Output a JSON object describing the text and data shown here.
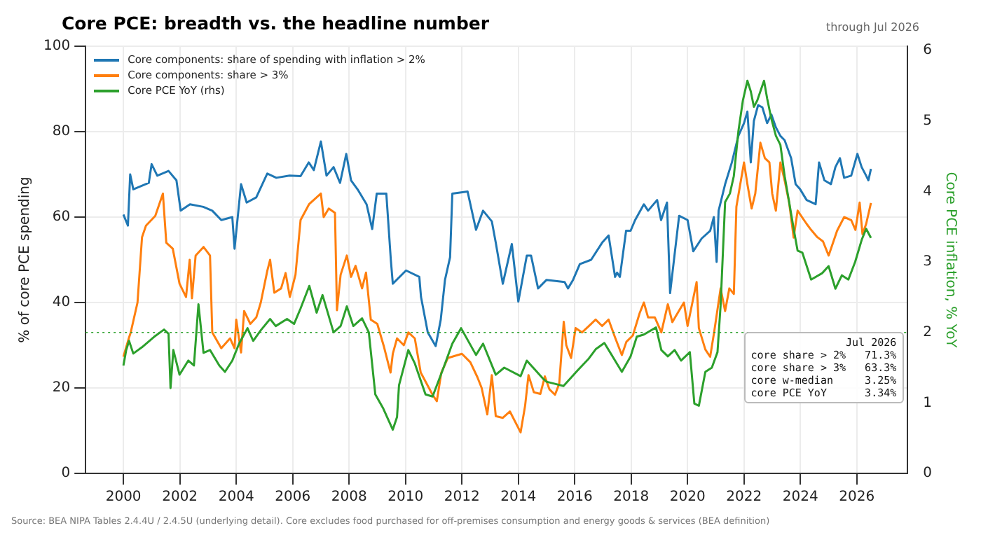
{
  "chart_data": {
    "type": "line",
    "title": "Core PCE: breadth vs. the headline number",
    "subtitle": "through Jul 2026",
    "ylabel": "% of core PCE spending",
    "y2label": "Core PCE inflation, % YoY",
    "xlim": [
      1998.66,
      2027.8
    ],
    "xticks": [
      2000,
      2002,
      2004,
      2006,
      2008,
      2010,
      2012,
      2014,
      2016,
      2018,
      2020,
      2022,
      2024,
      2026
    ],
    "ylim": [
      0,
      100
    ],
    "yticks": [
      0,
      20,
      40,
      60,
      80,
      100
    ],
    "y2lim": [
      0,
      6.06
    ],
    "y2ticks": [
      0,
      1,
      2,
      3,
      4,
      5,
      6
    ],
    "grid": true,
    "legend": "top left",
    "ref_lines": [
      {
        "axis": "y2",
        "value": 2,
        "color": "#2ca02c",
        "line_style": "dotted"
      }
    ],
    "annotations": [
      "Source: BEA NIPA Tables 2.4.4U / 2.4.5U (underlying detail). Core excludes food purchased for off-premises consumption and energy goods & services (BEA definition)",
      "Jul 2026",
      "core share > 2%   71.3%",
      "core share > 3%   63.3%",
      "core w-median     3.25%",
      "core PCE YoY      3.34%"
    ],
    "series": [
      {
        "name": "Core components: share of spending with inflation > 2%",
        "color": "#1f77b4",
        "x": [
          2000.0,
          2000.16,
          2000.24,
          2000.35,
          2000.9,
          2001.0,
          2001.2,
          2001.6,
          2001.88,
          2002.03,
          2002.36,
          2002.83,
          2003.15,
          2003.47,
          2003.86,
          2003.94,
          2004.17,
          2004.37,
          2004.71,
          2005.1,
          2005.42,
          2005.89,
          2006.28,
          2006.57,
          2006.75,
          2007.0,
          2007.2,
          2007.45,
          2007.68,
          2007.9,
          2008.07,
          2008.3,
          2008.62,
          2008.82,
          2008.98,
          2009.32,
          2009.48,
          2009.55,
          2010.02,
          2010.49,
          2010.55,
          2010.79,
          2011.07,
          2011.25,
          2011.4,
          2011.58,
          2011.66,
          2012.2,
          2012.5,
          2012.75,
          2013.06,
          2013.2,
          2013.45,
          2013.77,
          2014.0,
          2014.3,
          2014.45,
          2014.7,
          2015.0,
          2015.64,
          2015.76,
          2015.94,
          2016.18,
          2016.58,
          2016.97,
          2017.2,
          2017.43,
          2017.5,
          2017.6,
          2017.82,
          2017.98,
          2018.14,
          2018.45,
          2018.6,
          2018.92,
          2019.06,
          2019.27,
          2019.38,
          2019.5,
          2019.7,
          2020.0,
          2020.2,
          2020.5,
          2020.8,
          2020.93,
          2021.03,
          2021.1,
          2021.33,
          2021.57,
          2021.8,
          2022.0,
          2022.12,
          2022.24,
          2022.35,
          2022.5,
          2022.65,
          2022.82,
          2022.97,
          2023.13,
          2023.29,
          2023.44,
          2023.67,
          2023.83,
          2023.99,
          2024.22,
          2024.54,
          2024.66,
          2024.85,
          2025.08,
          2025.24,
          2025.4,
          2025.55,
          2025.8,
          2026.02,
          2026.17,
          2026.33,
          2026.41,
          2026.5
        ],
        "values": [
          60.6,
          58,
          70,
          66.5,
          68,
          72.4,
          69.7,
          70.8,
          68.6,
          61.5,
          63,
          62.4,
          61.5,
          59.3,
          60,
          52.6,
          67.7,
          63.4,
          64.6,
          70.2,
          69.2,
          69.7,
          69.6,
          72.8,
          71,
          77.7,
          69.7,
          71.7,
          68,
          74.8,
          68.6,
          66.5,
          63,
          57.2,
          65.5,
          65.5,
          50,
          44.4,
          47.5,
          46,
          41.3,
          33,
          29.8,
          36,
          45.3,
          50.6,
          65.5,
          66,
          57,
          61.5,
          59,
          54,
          44.4,
          53.7,
          40.2,
          51,
          51,
          43.3,
          45.3,
          44.8,
          43.3,
          45.3,
          49,
          50,
          54,
          55.7,
          46,
          47,
          46,
          56.8,
          56.8,
          59.3,
          63,
          61.5,
          64,
          59.3,
          63.4,
          42.2,
          49,
          60.3,
          59.3,
          52,
          55,
          56.8,
          60,
          49.5,
          61.5,
          67.7,
          72.8,
          79,
          82,
          84.7,
          72.8,
          82.5,
          86.2,
          85.7,
          82,
          84,
          81,
          79,
          78,
          73.8,
          67.7,
          66.5,
          64,
          63,
          72.8,
          68.6,
          67.7,
          71.7,
          73.8,
          69.2,
          69.7,
          74.8,
          71.7,
          69.7,
          68.6,
          71.3
        ]
      },
      {
        "name": "Core components: share > 3%",
        "color": "#ff7f0e",
        "x": [
          2000.0,
          2000.2,
          2000.26,
          2000.5,
          2000.66,
          2000.8,
          2001.13,
          2001.4,
          2001.52,
          2001.75,
          2001.99,
          2002.22,
          2002.35,
          2002.43,
          2002.56,
          2002.84,
          2003.07,
          2003.15,
          2003.47,
          2003.78,
          2003.94,
          2004.0,
          2004.17,
          2004.28,
          2004.5,
          2004.71,
          2004.87,
          2005.1,
          2005.2,
          2005.35,
          2005.59,
          2005.75,
          2005.9,
          2006.1,
          2006.28,
          2006.58,
          2007.0,
          2007.1,
          2007.28,
          2007.5,
          2007.57,
          2007.7,
          2007.92,
          2008.07,
          2008.23,
          2008.46,
          2008.6,
          2008.77,
          2009.0,
          2009.23,
          2009.47,
          2009.55,
          2009.7,
          2009.94,
          2010.1,
          2010.33,
          2010.54,
          2010.96,
          2011.11,
          2011.27,
          2011.5,
          2012.0,
          2012.3,
          2012.55,
          2012.7,
          2012.9,
          2013.06,
          2013.2,
          2013.45,
          2013.7,
          2014.08,
          2014.24,
          2014.36,
          2014.55,
          2014.78,
          2014.94,
          2015.1,
          2015.3,
          2015.45,
          2015.61,
          2015.7,
          2015.87,
          2016.03,
          2016.26,
          2016.5,
          2016.74,
          2016.97,
          2017.2,
          2017.43,
          2017.67,
          2017.83,
          2018.06,
          2018.3,
          2018.45,
          2018.6,
          2018.84,
          2019.07,
          2019.3,
          2019.46,
          2019.6,
          2019.87,
          2020.0,
          2020.32,
          2020.4,
          2020.63,
          2020.8,
          2020.94,
          2021.17,
          2021.33,
          2021.48,
          2021.64,
          2021.73,
          2022.0,
          2022.12,
          2022.27,
          2022.4,
          2022.58,
          2022.74,
          2022.9,
          2023.0,
          2023.13,
          2023.29,
          2023.44,
          2023.6,
          2023.76,
          2023.9,
          2024.22,
          2024.38,
          2024.6,
          2024.8,
          2025.0,
          2025.3,
          2025.55,
          2025.8,
          2025.95,
          2026.1,
          2026.2,
          2026.33,
          2026.5
        ],
        "values": [
          27.3,
          31.8,
          33,
          40,
          55.3,
          58,
          60.3,
          65.5,
          54,
          52.6,
          44.4,
          41.3,
          50,
          41,
          51,
          53,
          51,
          33,
          29.3,
          31.6,
          29.3,
          36,
          28.3,
          38,
          35,
          36.5,
          40,
          47.4,
          50,
          42.3,
          43.3,
          46.9,
          41.3,
          46.5,
          59.3,
          63,
          65.5,
          60,
          62,
          61,
          38.2,
          46.5,
          51,
          46,
          48.6,
          43.3,
          47,
          36,
          35,
          29.8,
          23.6,
          28,
          31.6,
          30,
          33,
          31.6,
          23.6,
          18.4,
          16.9,
          23.6,
          27,
          28,
          26,
          22.5,
          20,
          13.8,
          23,
          13.4,
          13,
          14.5,
          9.6,
          15.8,
          23,
          19,
          18.6,
          22.7,
          19.7,
          18.4,
          21,
          35.5,
          30,
          27,
          34,
          33,
          34.5,
          36,
          34.5,
          36,
          31.8,
          27.7,
          30.8,
          32.3,
          37.5,
          40,
          36.5,
          36.5,
          33,
          39.6,
          35.4,
          37,
          40,
          34.5,
          44.8,
          34,
          29,
          27.3,
          33,
          43.3,
          38,
          43.3,
          42,
          62.4,
          72.8,
          67.7,
          62,
          65.5,
          77.4,
          73.8,
          72.8,
          65.5,
          61.5,
          72.8,
          68.6,
          63.4,
          55.2,
          61.5,
          58.4,
          57,
          55.3,
          54.3,
          51,
          56.8,
          60,
          59.3,
          57,
          63.4,
          56,
          58.4,
          63.3
        ]
      },
      {
        "name": "Core PCE YoY (rhs)",
        "color": "#2ca02c",
        "axis": "y2",
        "x": [
          2000.0,
          2000.1,
          2000.2,
          2000.35,
          2000.66,
          2001.13,
          2001.44,
          2001.6,
          2001.67,
          2001.77,
          2001.99,
          2002.3,
          2002.5,
          2002.66,
          2002.84,
          2003.07,
          2003.4,
          2003.6,
          2003.86,
          2004.1,
          2004.4,
          2004.6,
          2004.87,
          2005.2,
          2005.4,
          2005.8,
          2006.05,
          2006.28,
          2006.59,
          2006.85,
          2007.06,
          2007.45,
          2007.7,
          2007.92,
          2008.15,
          2008.46,
          2008.7,
          2008.93,
          2009.2,
          2009.55,
          2009.7,
          2009.77,
          2010.1,
          2010.33,
          2010.71,
          2010.96,
          2011.35,
          2011.66,
          2011.97,
          2012.5,
          2012.75,
          2013.2,
          2013.5,
          2014.08,
          2014.3,
          2014.86,
          2015.0,
          2015.3,
          2015.6,
          2016.1,
          2016.5,
          2016.74,
          2017.05,
          2017.43,
          2017.67,
          2017.98,
          2018.2,
          2018.45,
          2018.88,
          2019.07,
          2019.3,
          2019.54,
          2019.77,
          2020.08,
          2020.24,
          2020.4,
          2020.63,
          2020.86,
          2021.06,
          2021.17,
          2021.33,
          2021.5,
          2021.64,
          2021.8,
          2021.96,
          2022.12,
          2022.24,
          2022.35,
          2022.47,
          2022.71,
          2022.82,
          2022.97,
          2023.13,
          2023.29,
          2023.44,
          2023.6,
          2023.76,
          2023.9,
          2024.07,
          2024.38,
          2024.77,
          2025.0,
          2025.24,
          2025.47,
          2025.7,
          2025.94,
          2026.17,
          2026.33,
          2026.5
        ],
        "values": [
          1.53,
          1.75,
          1.88,
          1.7,
          1.79,
          1.95,
          2.04,
          1.98,
          1.21,
          1.75,
          1.4,
          1.6,
          1.53,
          2.4,
          1.71,
          1.75,
          1.53,
          1.44,
          1.6,
          1.84,
          2.06,
          1.88,
          2.03,
          2.19,
          2.09,
          2.19,
          2.12,
          2.34,
          2.66,
          2.28,
          2.53,
          2.0,
          2.09,
          2.37,
          2.09,
          2.2,
          2.0,
          1.12,
          0.93,
          0.62,
          0.8,
          1.25,
          1.75,
          1.56,
          1.12,
          1.09,
          1.5,
          1.84,
          2.06,
          1.68,
          1.84,
          1.4,
          1.5,
          1.38,
          1.6,
          1.35,
          1.3,
          1.27,
          1.24,
          1.46,
          1.63,
          1.76,
          1.85,
          1.6,
          1.44,
          1.66,
          1.94,
          1.97,
          2.07,
          1.75,
          1.66,
          1.75,
          1.6,
          1.72,
          0.99,
          0.96,
          1.44,
          1.5,
          1.72,
          2.38,
          3.85,
          3.97,
          4.22,
          4.85,
          5.29,
          5.57,
          5.42,
          5.2,
          5.29,
          5.57,
          5.32,
          5.03,
          4.79,
          4.66,
          4.22,
          3.85,
          3.47,
          3.16,
          3.13,
          2.75,
          2.84,
          2.94,
          2.62,
          2.81,
          2.75,
          3.0,
          3.31,
          3.47,
          3.34
        ]
      }
    ]
  }
}
